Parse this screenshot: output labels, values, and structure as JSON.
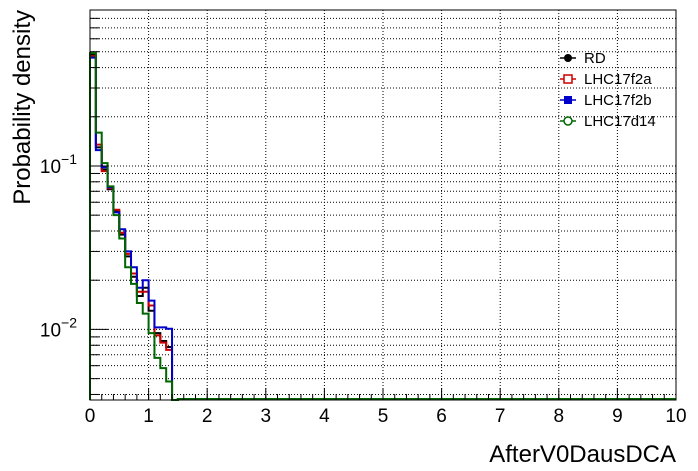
{
  "chart_data": {
    "type": "line",
    "xlabel": "AfterV0DausDCA",
    "ylabel": "Probability density",
    "xlim": [
      0,
      10
    ],
    "ylim": [
      0.0037,
      0.9
    ],
    "y_scale": "log",
    "grid": true,
    "legend_position": "top-right",
    "x_ticks": [
      "0",
      "1",
      "2",
      "3",
      "4",
      "5",
      "6",
      "7",
      "8",
      "9",
      "10"
    ],
    "y_ticks": [
      {
        "value": 0.1,
        "base": "10",
        "exp": "−1"
      },
      {
        "value": 0.01,
        "base": "10",
        "exp": "−2"
      }
    ],
    "bin_edges": [
      0,
      0.1,
      0.2,
      0.3,
      0.4,
      0.5,
      0.6,
      0.7,
      0.8,
      0.9,
      1.0,
      1.1,
      1.2,
      1.3,
      1.4,
      1.5
    ],
    "series": [
      {
        "name": "RD",
        "color": "#000000",
        "marker": "filled-circle",
        "values": [
          0.48,
          0.13,
          0.095,
          0.072,
          0.053,
          0.038,
          0.028,
          0.021,
          0.016,
          0.018,
          0.013,
          0.0095,
          0.0085,
          0.0078,
          0.0037
        ]
      },
      {
        "name": "LHC17f2a",
        "color": "#cc0000",
        "marker": "open-square",
        "values": [
          0.47,
          0.135,
          0.093,
          0.073,
          0.054,
          0.039,
          0.029,
          0.022,
          0.017,
          0.017,
          0.014,
          0.0092,
          0.0083,
          0.0075,
          0.0037
        ]
      },
      {
        "name": "LHC17f2b",
        "color": "#0000cc",
        "marker": "filled-square",
        "values": [
          0.46,
          0.125,
          0.098,
          0.074,
          0.052,
          0.041,
          0.03,
          0.024,
          0.018,
          0.02,
          0.015,
          0.0103,
          0.0103,
          0.0101,
          0.0037
        ]
      },
      {
        "name": "LHC17d14",
        "color": "#006600",
        "marker": "open-circle",
        "values": [
          0.49,
          0.16,
          0.104,
          0.075,
          0.05,
          0.036,
          0.024,
          0.019,
          0.0145,
          0.0125,
          0.0095,
          0.0067,
          0.0058,
          0.0048,
          0.0037
        ]
      }
    ]
  }
}
